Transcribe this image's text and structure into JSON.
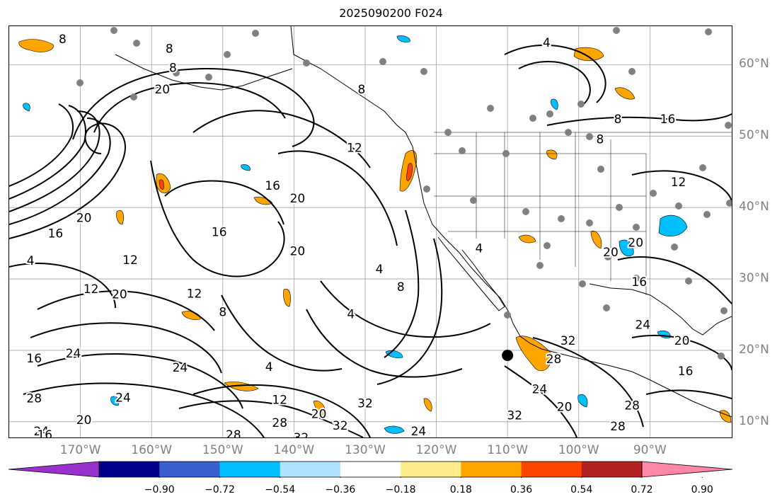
{
  "title": "2025090200 F024",
  "lat_labels": [
    {
      "text": "60°N",
      "lat": 60
    },
    {
      "text": "50°N",
      "lat": 50
    },
    {
      "text": "40°N",
      "lat": 40
    },
    {
      "text": "30°N",
      "lat": 30
    },
    {
      "text": "20°N",
      "lat": 20
    },
    {
      "text": "10°N",
      "lat": 10
    }
  ],
  "lon_labels": [
    {
      "text": "170°W",
      "lon": -170
    },
    {
      "text": "160°W",
      "lon": -160
    },
    {
      "text": "150°W",
      "lon": -150
    },
    {
      "text": "140°W",
      "lon": -140
    },
    {
      "text": "130°W",
      "lon": -130
    },
    {
      "text": "120°W",
      "lon": -120
    },
    {
      "text": "110°W",
      "lon": -110
    },
    {
      "text": "100°W",
      "lon": -100
    },
    {
      "text": "90°W",
      "lon": -90
    }
  ],
  "colorbar": {
    "colors": [
      "#9932cc",
      "#00008b",
      "#3a5fcd",
      "#00bfff",
      "#b0e2ff",
      "#ffffff",
      "#ffec8b",
      "#ffa500",
      "#ff4500",
      "#b22222",
      "#ff88a8"
    ],
    "ticks": [
      "−0.90",
      "−0.72",
      "−0.54",
      "−0.36",
      "−0.18",
      "0.18",
      "0.36",
      "0.54",
      "0.72",
      "0.90"
    ]
  },
  "contour_labels": [
    {
      "text": "8",
      "lon": -172.5,
      "lat": 63.5
    },
    {
      "text": "8",
      "lon": -157.5,
      "lat": 62.2
    },
    {
      "text": "8",
      "lon": -157,
      "lat": 59.5
    },
    {
      "text": "20",
      "lon": -158.5,
      "lat": 56.5
    },
    {
      "text": "8",
      "lon": -130.5,
      "lat": 56.5
    },
    {
      "text": "4",
      "lon": -104.5,
      "lat": 63
    },
    {
      "text": "8",
      "lon": -94.5,
      "lat": 52.3
    },
    {
      "text": "16",
      "lon": -87.5,
      "lat": 52.3
    },
    {
      "text": "8",
      "lon": -97,
      "lat": 49.5
    },
    {
      "text": "12",
      "lon": -131.5,
      "lat": 48.3
    },
    {
      "text": "16",
      "lon": -143,
      "lat": 43
    },
    {
      "text": "20",
      "lon": -139.5,
      "lat": 41.2
    },
    {
      "text": "20",
      "lon": -169.5,
      "lat": 38.5
    },
    {
      "text": "16",
      "lon": -173.5,
      "lat": 36.3
    },
    {
      "text": "16",
      "lon": -150.5,
      "lat": 36.5
    },
    {
      "text": "4",
      "lon": -177,
      "lat": 32.5
    },
    {
      "text": "12",
      "lon": -163,
      "lat": 32.6
    },
    {
      "text": "20",
      "lon": -139.5,
      "lat": 33.8
    },
    {
      "text": "12",
      "lon": -168.5,
      "lat": 28.5
    },
    {
      "text": "20",
      "lon": -164.5,
      "lat": 27.8
    },
    {
      "text": "12",
      "lon": -154,
      "lat": 27.9
    },
    {
      "text": "4",
      "lon": -128,
      "lat": 31.3
    },
    {
      "text": "8",
      "lon": -125,
      "lat": 28.8
    },
    {
      "text": "8",
      "lon": -150,
      "lat": 25.3
    },
    {
      "text": "4",
      "lon": -132,
      "lat": 25
    },
    {
      "text": "4",
      "lon": -114,
      "lat": 34.2
    },
    {
      "text": "20",
      "lon": -95.5,
      "lat": 33.7
    },
    {
      "text": "20",
      "lon": -92,
      "lat": 35
    },
    {
      "text": "16",
      "lon": -91.5,
      "lat": 29.5
    },
    {
      "text": "12",
      "lon": -86,
      "lat": 43.5
    },
    {
      "text": "24",
      "lon": -91,
      "lat": 23.5
    },
    {
      "text": "32",
      "lon": -101.5,
      "lat": 21.3
    },
    {
      "text": "20",
      "lon": -85.5,
      "lat": 21.3
    },
    {
      "text": "16",
      "lon": -85,
      "lat": 17
    },
    {
      "text": "28",
      "lon": -103.5,
      "lat": 18.7
    },
    {
      "text": "16",
      "lon": -176.5,
      "lat": 18.8
    },
    {
      "text": "24",
      "lon": -171,
      "lat": 19.5
    },
    {
      "text": "24",
      "lon": -156,
      "lat": 17.5
    },
    {
      "text": "4",
      "lon": -143.5,
      "lat": 17.6
    },
    {
      "text": "24",
      "lon": -164,
      "lat": 13.3
    },
    {
      "text": "28",
      "lon": -176.5,
      "lat": 13.2
    },
    {
      "text": "12",
      "lon": -142,
      "lat": 13
    },
    {
      "text": "32",
      "lon": -130,
      "lat": 12.5
    },
    {
      "text": "24",
      "lon": -105.5,
      "lat": 14.5
    },
    {
      "text": "20",
      "lon": -102,
      "lat": 12
    },
    {
      "text": "32",
      "lon": -109,
      "lat": 10.8
    },
    {
      "text": "20",
      "lon": -136.5,
      "lat": 11
    },
    {
      "text": "20",
      "lon": -169.5,
      "lat": 10.2
    },
    {
      "text": "28",
      "lon": -142,
      "lat": 9.8
    },
    {
      "text": "32",
      "lon": -133.5,
      "lat": 9.4
    },
    {
      "text": "28",
      "lon": -148.5,
      "lat": 8.1
    },
    {
      "text": "24",
      "lon": -175.5,
      "lat": 8.6
    },
    {
      "text": "16",
      "lon": -175,
      "lat": 8.1
    },
    {
      "text": "32",
      "lon": -139,
      "lat": 7.7
    },
    {
      "text": "24",
      "lon": -122.5,
      "lat": 8.6
    },
    {
      "text": "28",
      "lon": -94.5,
      "lat": 9.3
    },
    {
      "text": "28",
      "lon": -92.5,
      "lat": 12.2
    }
  ],
  "storm_marker": {
    "lon": -110,
    "lat": 19.3
  }
}
